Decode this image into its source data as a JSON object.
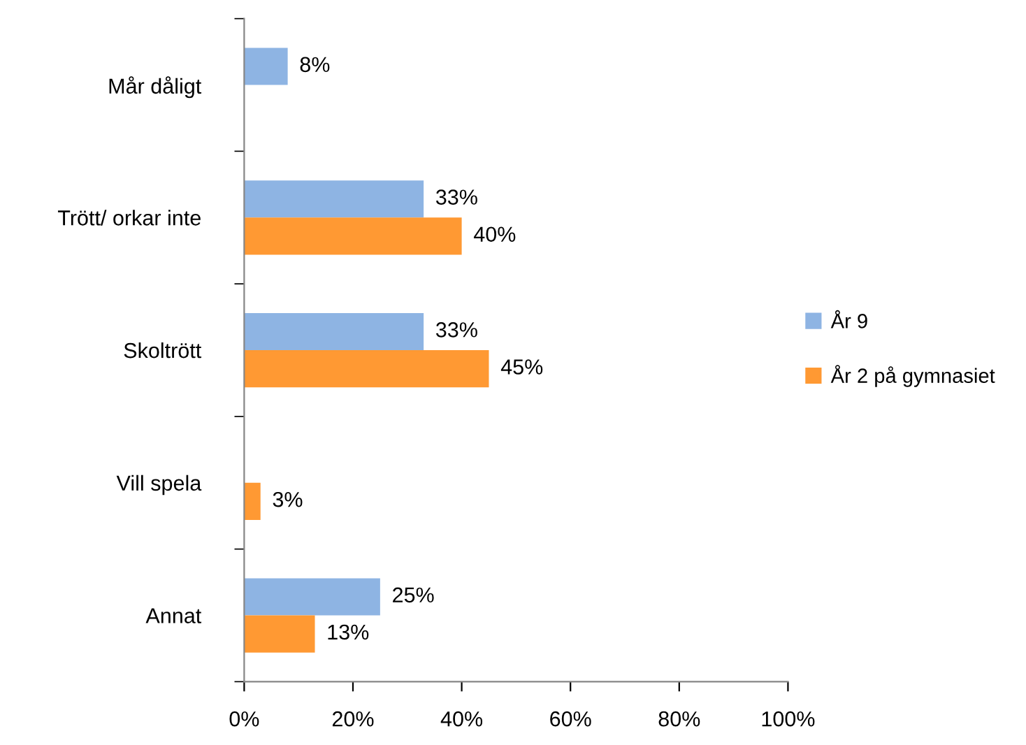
{
  "chart_data": {
    "type": "bar",
    "orientation": "horizontal",
    "categories": [
      "Mår dåligt",
      "Trött/ orkar inte",
      "Skoltrött",
      "Vill spela",
      "Annat"
    ],
    "series": [
      {
        "name": "År 9",
        "color": "#8eb4e3",
        "values": [
          8,
          33,
          33,
          null,
          25
        ],
        "value_labels": [
          "8%",
          "33%",
          "33%",
          null,
          "25%"
        ]
      },
      {
        "name": "År 2 på gymnasiet",
        "color": "#ff9933",
        "values": [
          null,
          40,
          45,
          3,
          13
        ],
        "value_labels": [
          null,
          "40%",
          "45%",
          "3%",
          "13%"
        ]
      }
    ],
    "xlim": [
      0,
      100
    ],
    "xticks": [
      {
        "value": 0,
        "label": "0%"
      },
      {
        "value": 20,
        "label": "20%"
      },
      {
        "value": 40,
        "label": "40%"
      },
      {
        "value": 60,
        "label": "60%"
      },
      {
        "value": 80,
        "label": "80%"
      },
      {
        "value": 100,
        "label": "100%"
      }
    ],
    "grid": false,
    "legend": "right"
  }
}
